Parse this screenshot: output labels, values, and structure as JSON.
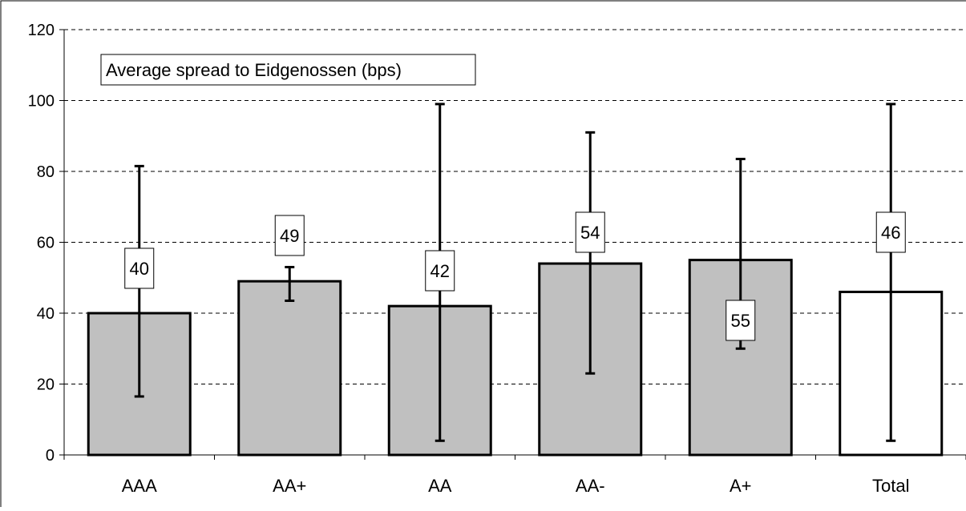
{
  "chart_data": {
    "type": "bar",
    "title": "Average spread to Eidgenossen (bps)",
    "xlabel": "",
    "ylabel": "",
    "ylim": [
      0,
      120
    ],
    "yticks": [
      0,
      20,
      40,
      60,
      80,
      100,
      120
    ],
    "grid": "horizontal dashed",
    "categories": [
      "AAA",
      "AA+",
      "AA",
      "AA-",
      "A+",
      "Total"
    ],
    "values": [
      40,
      49,
      42,
      54,
      55,
      46
    ],
    "value_labels": [
      "40",
      "49",
      "42",
      "54",
      "55",
      "46"
    ],
    "error_low": [
      16.5,
      43.5,
      4,
      23,
      30,
      4
    ],
    "error_high": [
      81.5,
      53,
      99,
      91,
      83.5,
      99
    ],
    "bar_colors": [
      "#c0c0c0",
      "#c0c0c0",
      "#c0c0c0",
      "#c0c0c0",
      "#c0c0c0",
      "#ffffff"
    ]
  }
}
